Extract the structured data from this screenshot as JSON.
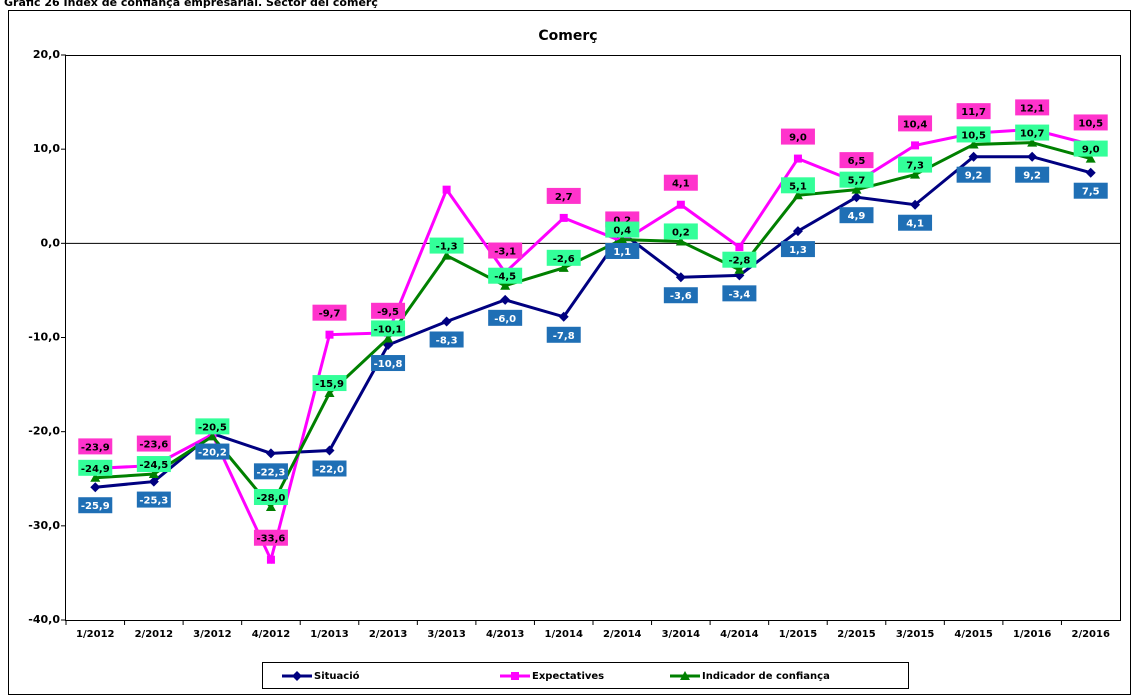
{
  "chart_data": {
    "type": "line",
    "caption": "Gràfic 26 Índex de confiança empresarial. Sector del comerç",
    "title": "Comerç",
    "categories": [
      "1/2012",
      "2/2012",
      "3/2012",
      "4/2012",
      "1/2013",
      "2/2013",
      "3/2013",
      "4/2013",
      "1/2014",
      "2/2014",
      "3/2014",
      "4/2014",
      "1/2015",
      "2/2015",
      "3/2015",
      "4/2015",
      "1/2016",
      "2/2016"
    ],
    "series": [
      {
        "name": "Situació",
        "color": "#000080",
        "marker": "diamond",
        "label_color": "#1f6fb5",
        "label_text": "#ffffff",
        "label_pos": "below",
        "values": [
          -25.9,
          -25.3,
          -20.2,
          -22.3,
          -22.0,
          -10.8,
          -8.3,
          -6.0,
          -7.8,
          1.1,
          -3.6,
          -3.4,
          1.3,
          4.9,
          4.1,
          9.2,
          9.2,
          7.5
        ],
        "value_labels": [
          "-25,9",
          "-25,3",
          "-20,2",
          "-22,3",
          "-22,0",
          "-10,8",
          "-8,3",
          "-6,0",
          "-7,8",
          "1,1",
          "-3,6",
          "-3,4",
          "1,3",
          "4,9",
          "4,1",
          "9,2",
          "9,2",
          "7,5"
        ]
      },
      {
        "name": "Expectatives",
        "color": "#ff00ff",
        "marker": "square",
        "label_color": "#ff33cc",
        "label_text": "#000000",
        "label_pos": "above",
        "values": [
          -23.9,
          -23.6,
          -20.3,
          -33.6,
          -9.7,
          -9.5,
          5.7,
          -3.1,
          2.7,
          0.2,
          4.1,
          -0.4,
          9.0,
          6.5,
          10.4,
          11.7,
          12.1,
          10.5
        ],
        "value_labels": [
          "-23,9",
          "-23,6",
          null,
          "-33,6",
          "-9,7",
          "-9,5",
          null,
          "-3,1",
          "2,7",
          "0,2",
          "4,1",
          null,
          "9,0",
          "6,5",
          "10,4",
          "11,7",
          "12,1",
          "10,5"
        ]
      },
      {
        "name": "Indicador de confiança",
        "color": "#008000",
        "marker": "triangle",
        "label_color": "#33ff99",
        "label_text": "#000000",
        "label_pos": "on",
        "values": [
          -24.9,
          -24.5,
          -20.5,
          -28.0,
          -15.9,
          -10.1,
          -1.3,
          -4.5,
          -2.6,
          0.4,
          0.2,
          -2.8,
          5.1,
          5.7,
          7.3,
          10.5,
          10.7,
          9.0
        ],
        "value_labels": [
          "-24,9",
          "-24,5",
          "-20,5",
          "-28,0",
          "-15,9",
          "-10,1",
          "-1,3",
          "-4,5",
          "-2,6",
          "0,4",
          "0,2",
          "-2,8",
          "5,1",
          "5,7",
          "7,3",
          "10,5",
          "10,7",
          "9,0"
        ]
      }
    ],
    "ylim": [
      -40,
      20
    ],
    "yticks": [
      {
        "value": -40,
        "label": "-40,0"
      },
      {
        "value": -30,
        "label": "-30,0"
      },
      {
        "value": -20,
        "label": "-20,0"
      },
      {
        "value": -10,
        "label": "-10,0"
      },
      {
        "value": 0,
        "label": "0,0"
      },
      {
        "value": 10,
        "label": "10,0"
      },
      {
        "value": 20,
        "label": "20,0"
      }
    ],
    "grid": false,
    "legend": "bottom"
  }
}
